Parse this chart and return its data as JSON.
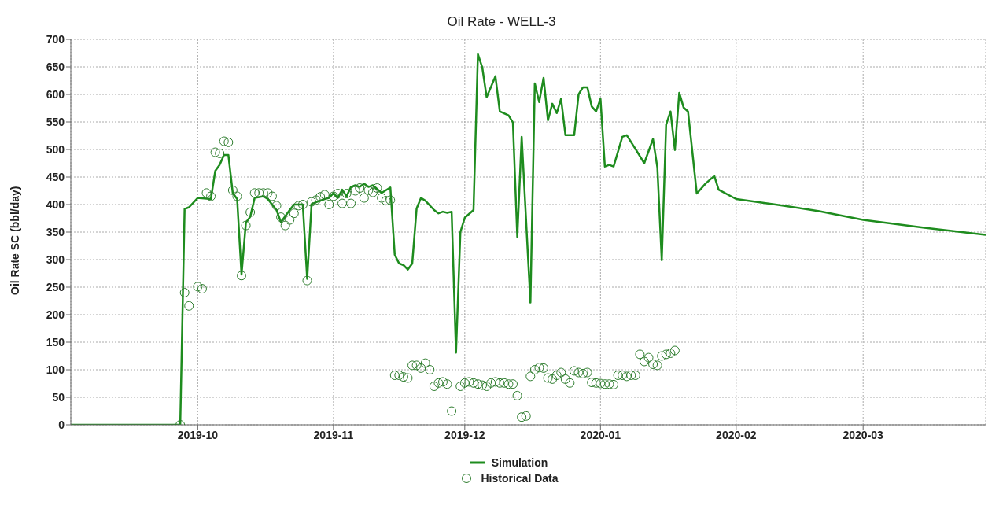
{
  "chart_data": {
    "type": "line",
    "title": "Oil Rate - WELL-3",
    "ylabel": "Oil Rate SC (bbl/day)",
    "xlim": [
      "2019-09-02",
      "2020-03-29"
    ],
    "xticks": [
      "2019-10",
      "2019-11",
      "2019-12",
      "2020-01",
      "2020-02",
      "2020-03"
    ],
    "ylim": [
      0,
      700
    ],
    "yticks": [
      0,
      50,
      100,
      150,
      200,
      250,
      300,
      350,
      400,
      450,
      500,
      550,
      600,
      650,
      700
    ],
    "grid": true,
    "legend": "bottom",
    "series": [
      {
        "name": "Simulation",
        "color": "#1e8c1e",
        "marker": "none",
        "x": [
          "2019-09-02",
          "2019-09-27",
          "2019-09-28",
          "2019-09-29",
          "2019-10-01",
          "2019-10-04",
          "2019-10-05",
          "2019-10-06",
          "2019-10-07",
          "2019-10-08",
          "2019-10-09",
          "2019-10-10",
          "2019-10-11",
          "2019-10-12",
          "2019-10-13",
          "2019-10-14",
          "2019-10-16",
          "2019-10-17",
          "2019-10-19",
          "2019-10-20",
          "2019-10-22",
          "2019-10-23",
          "2019-10-25",
          "2019-10-26",
          "2019-10-27",
          "2019-10-28",
          "2019-10-30",
          "2019-10-31",
          "2019-11-01",
          "2019-11-02",
          "2019-11-03",
          "2019-11-04",
          "2019-11-05",
          "2019-11-06",
          "2019-11-07",
          "2019-11-08",
          "2019-11-09",
          "2019-11-10",
          "2019-11-12",
          "2019-11-14",
          "2019-11-15",
          "2019-11-16",
          "2019-11-17",
          "2019-11-18",
          "2019-11-19",
          "2019-11-20",
          "2019-11-21",
          "2019-11-22",
          "2019-11-24",
          "2019-11-25",
          "2019-11-26",
          "2019-11-27",
          "2019-11-28",
          "2019-11-29",
          "2019-11-30",
          "2019-12-01",
          "2019-12-03",
          "2019-12-04",
          "2019-12-05",
          "2019-12-06",
          "2019-12-08",
          "2019-12-09",
          "2019-12-11",
          "2019-12-12",
          "2019-12-13",
          "2019-12-14",
          "2019-12-16",
          "2019-12-17",
          "2019-12-18",
          "2019-12-19",
          "2019-12-20",
          "2019-12-21",
          "2019-12-22",
          "2019-12-23",
          "2019-12-24",
          "2019-12-26",
          "2019-12-27",
          "2019-12-28",
          "2019-12-29",
          "2019-12-30",
          "2019-12-31",
          "2020-01-01",
          "2020-01-02",
          "2020-01-03",
          "2020-01-04",
          "2020-01-06",
          "2020-01-07",
          "2020-01-09",
          "2020-01-11",
          "2020-01-13",
          "2020-01-14",
          "2020-01-15",
          "2020-01-16",
          "2020-01-17",
          "2020-01-18",
          "2020-01-19",
          "2020-01-20",
          "2020-01-21",
          "2020-01-22",
          "2020-01-23",
          "2020-01-25",
          "2020-01-27",
          "2020-01-28",
          "2020-02-01",
          "2020-02-10",
          "2020-02-20",
          "2020-03-01",
          "2020-03-15",
          "2020-03-29"
        ],
        "values": [
          0,
          0,
          392,
          395,
          412,
          410,
          461,
          472,
          490,
          490,
          421,
          410,
          273,
          367,
          378,
          412,
          415,
          410,
          390,
          368,
          390,
          400,
          400,
          265,
          401,
          404,
          410,
          412,
          421,
          412,
          427,
          415,
          432,
          435,
          432,
          438,
          432,
          435,
          421,
          431,
          309,
          293,
          290,
          282,
          293,
          393,
          412,
          407,
          390,
          384,
          387,
          385,
          387,
          131,
          350,
          376,
          390,
          673,
          649,
          595,
          633,
          569,
          562,
          549,
          341,
          523,
          222,
          620,
          586,
          630,
          553,
          583,
          566,
          592,
          526,
          526,
          600,
          613,
          613,
          578,
          569,
          592,
          469,
          472,
          469,
          523,
          526,
          501,
          475,
          519,
          467,
          299,
          545,
          569,
          499,
          603,
          576,
          569,
          495,
          420,
          438,
          452,
          427,
          410,
          400,
          388,
          372,
          358,
          345
        ]
      },
      {
        "name": "Historical Data",
        "type": "scatter",
        "color": "#2e7d2e",
        "marker": "circle",
        "x": [
          "2019-09-27",
          "2019-09-28",
          "2019-09-29",
          "2019-10-01",
          "2019-10-02",
          "2019-10-03",
          "2019-10-04",
          "2019-10-05",
          "2019-10-06",
          "2019-10-07",
          "2019-10-08",
          "2019-10-09",
          "2019-10-10",
          "2019-10-11",
          "2019-10-12",
          "2019-10-13",
          "2019-10-14",
          "2019-10-15",
          "2019-10-16",
          "2019-10-17",
          "2019-10-18",
          "2019-10-19",
          "2019-10-20",
          "2019-10-21",
          "2019-10-22",
          "2019-10-23",
          "2019-10-24",
          "2019-10-25",
          "2019-10-26",
          "2019-10-27",
          "2019-10-28",
          "2019-10-29",
          "2019-10-30",
          "2019-10-31",
          "2019-11-01",
          "2019-11-02",
          "2019-11-03",
          "2019-11-04",
          "2019-11-05",
          "2019-11-06",
          "2019-11-07",
          "2019-11-08",
          "2019-11-09",
          "2019-11-10",
          "2019-11-11",
          "2019-11-12",
          "2019-11-13",
          "2019-11-14",
          "2019-11-15",
          "2019-11-16",
          "2019-11-17",
          "2019-11-18",
          "2019-11-19",
          "2019-11-20",
          "2019-11-21",
          "2019-11-22",
          "2019-11-23",
          "2019-11-24",
          "2019-11-25",
          "2019-11-26",
          "2019-11-27",
          "2019-11-28",
          "2019-11-30",
          "2019-12-01",
          "2019-12-02",
          "2019-12-03",
          "2019-12-04",
          "2019-12-05",
          "2019-12-06",
          "2019-12-07",
          "2019-12-08",
          "2019-12-09",
          "2019-12-10",
          "2019-12-11",
          "2019-12-12",
          "2019-12-13",
          "2019-12-14",
          "2019-12-15",
          "2019-12-16",
          "2019-12-17",
          "2019-12-18",
          "2019-12-19",
          "2019-12-20",
          "2019-12-21",
          "2019-12-22",
          "2019-12-23",
          "2019-12-24",
          "2019-12-25",
          "2019-12-26",
          "2019-12-27",
          "2019-12-28",
          "2019-12-29",
          "2019-12-30",
          "2019-12-31",
          "2020-01-01",
          "2020-01-02",
          "2020-01-03",
          "2020-01-04",
          "2020-01-05",
          "2020-01-06",
          "2020-01-07",
          "2020-01-08",
          "2020-01-09",
          "2020-01-10",
          "2020-01-11",
          "2020-01-12",
          "2020-01-13",
          "2020-01-14",
          "2020-01-15",
          "2020-01-16",
          "2020-01-17",
          "2020-01-18"
        ],
        "values": [
          0,
          240,
          216,
          251,
          247,
          421,
          415,
          495,
          493,
          515,
          513,
          426,
          415,
          271,
          362,
          386,
          421,
          421,
          421,
          421,
          415,
          398,
          377,
          362,
          372,
          384,
          398,
          400,
          262,
          405,
          408,
          414,
          418,
          400,
          415,
          420,
          402,
          420,
          402,
          425,
          430,
          412,
          426,
          422,
          430,
          412,
          407,
          408,
          90,
          90,
          87,
          85,
          108,
          108,
          103,
          112,
          100,
          70,
          76,
          78,
          74,
          25,
          70,
          76,
          78,
          76,
          74,
          72,
          70,
          76,
          78,
          76,
          76,
          74,
          74,
          53,
          14,
          16,
          88,
          100,
          104,
          103,
          85,
          83,
          90,
          95,
          83,
          76,
          98,
          95,
          93,
          95,
          77,
          76,
          75,
          74,
          74,
          73,
          90,
          90,
          88,
          90,
          90,
          128,
          115,
          122,
          110,
          108,
          125,
          128,
          130,
          135
        ]
      }
    ]
  }
}
